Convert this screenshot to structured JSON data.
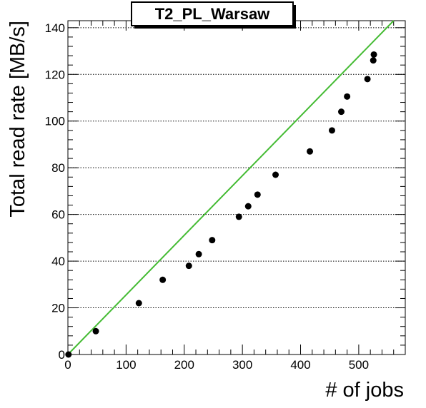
{
  "chart_data": {
    "type": "scatter",
    "title": "T2_PL_Warsaw",
    "xlabel": "# of jobs",
    "ylabel": "Total read rate [MB/s]",
    "xlim": [
      0,
      580
    ],
    "ylim": [
      0,
      143
    ],
    "xticks": [
      0,
      100,
      200,
      300,
      400,
      500
    ],
    "yticks": [
      0,
      20,
      40,
      60,
      80,
      100,
      120,
      140
    ],
    "grid": {
      "horizontal": true,
      "vertical": false
    },
    "colors": {
      "points": "#000000",
      "fit_line": "#44bb33"
    },
    "series": [
      {
        "x": [
          1,
          48,
          122,
          163,
          208,
          225,
          248,
          294,
          310,
          326,
          357,
          416,
          454,
          470,
          480,
          515,
          525,
          526
        ],
        "y": [
          0,
          10,
          22,
          32,
          38,
          43,
          49,
          59,
          63.5,
          68.5,
          77,
          87,
          96,
          104,
          110.5,
          118,
          126,
          128.5
        ]
      }
    ],
    "fit_line": {
      "x": [
        0,
        560
      ],
      "y": [
        0,
        143
      ]
    }
  }
}
